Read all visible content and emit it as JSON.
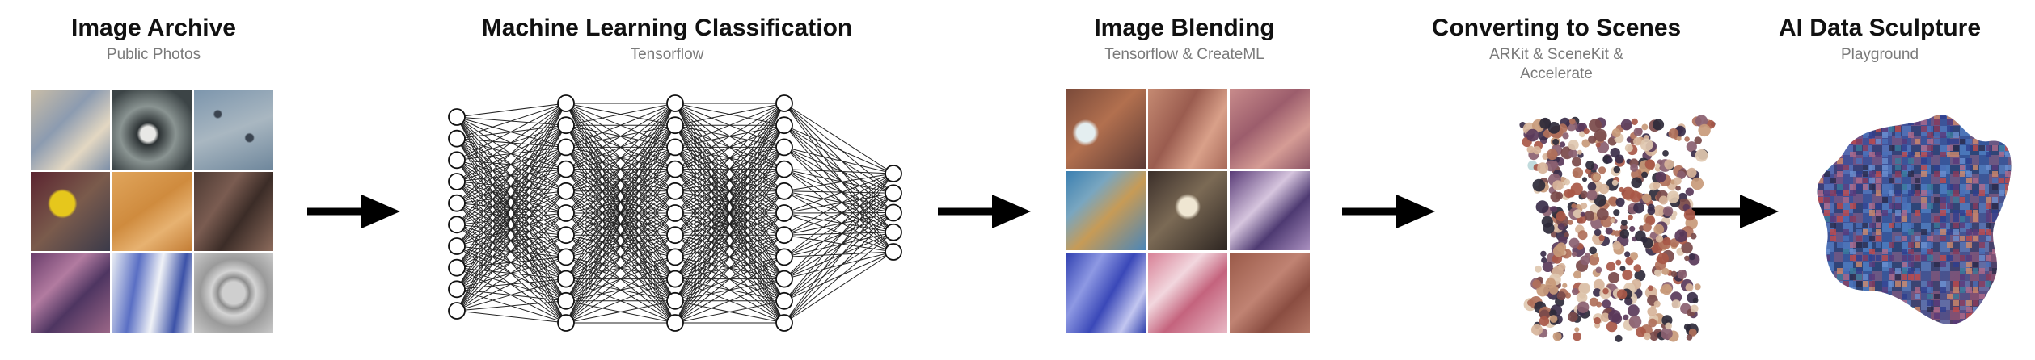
{
  "stages": [
    {
      "title": "Image Archive",
      "subtitle": "Public Photos"
    },
    {
      "title": "Machine Learning Classification",
      "subtitle": "Tensorflow"
    },
    {
      "title": "Image Blending",
      "subtitle": "Tensorflow & CreateML"
    },
    {
      "title": "Converting to Scenes",
      "subtitle": "ARKit & SceneKit & Accelerate"
    },
    {
      "title": "AI Data Sculpture",
      "subtitle": "Playground"
    }
  ],
  "network": {
    "layers": [
      10,
      11,
      11,
      11,
      5
    ]
  },
  "icons": [
    "right-arrow-icon"
  ]
}
